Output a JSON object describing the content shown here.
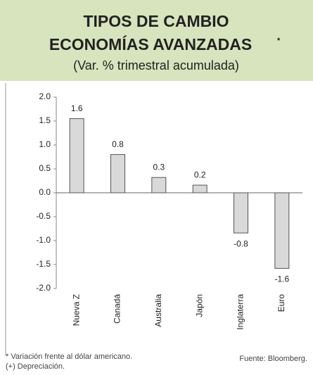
{
  "chart_data": {
    "type": "bar",
    "title_lines": [
      "TIPOS DE CAMBIO",
      "ECONOMÍAS AVANZADAS"
    ],
    "title_note": "*",
    "subtitle": "(Var. % trimestral acumulada)",
    "categories": [
      "Nueva Z",
      "Canadá",
      "Australia",
      "Japón",
      "Inglaterra",
      "Euro"
    ],
    "values": [
      1.55,
      0.8,
      0.32,
      0.16,
      -0.84,
      -1.58
    ],
    "value_labels": [
      "1.6",
      "0.8",
      "0.3",
      "0.2",
      "-0.8",
      "-1.6"
    ],
    "color": "#d9d9d9",
    "ylim": [
      -2,
      2
    ],
    "yticks": [
      {
        "value": -2,
        "label": "-2.0"
      },
      {
        "value": -1.5,
        "label": "-1.5"
      },
      {
        "value": -1,
        "label": "-1.0"
      },
      {
        "value": -0.5,
        "label": "-0.5"
      },
      {
        "value": 0,
        "label": "0.0"
      },
      {
        "value": 0.5,
        "label": "0.5"
      },
      {
        "value": 1,
        "label": "1.0"
      },
      {
        "value": 1.5,
        "label": "1.5"
      },
      {
        "value": 2,
        "label": "2.0"
      }
    ],
    "notes": [
      "* Variación frente al dólar americano.",
      "(+) Depreciación."
    ],
    "source": "Fuente: Bloomberg."
  }
}
